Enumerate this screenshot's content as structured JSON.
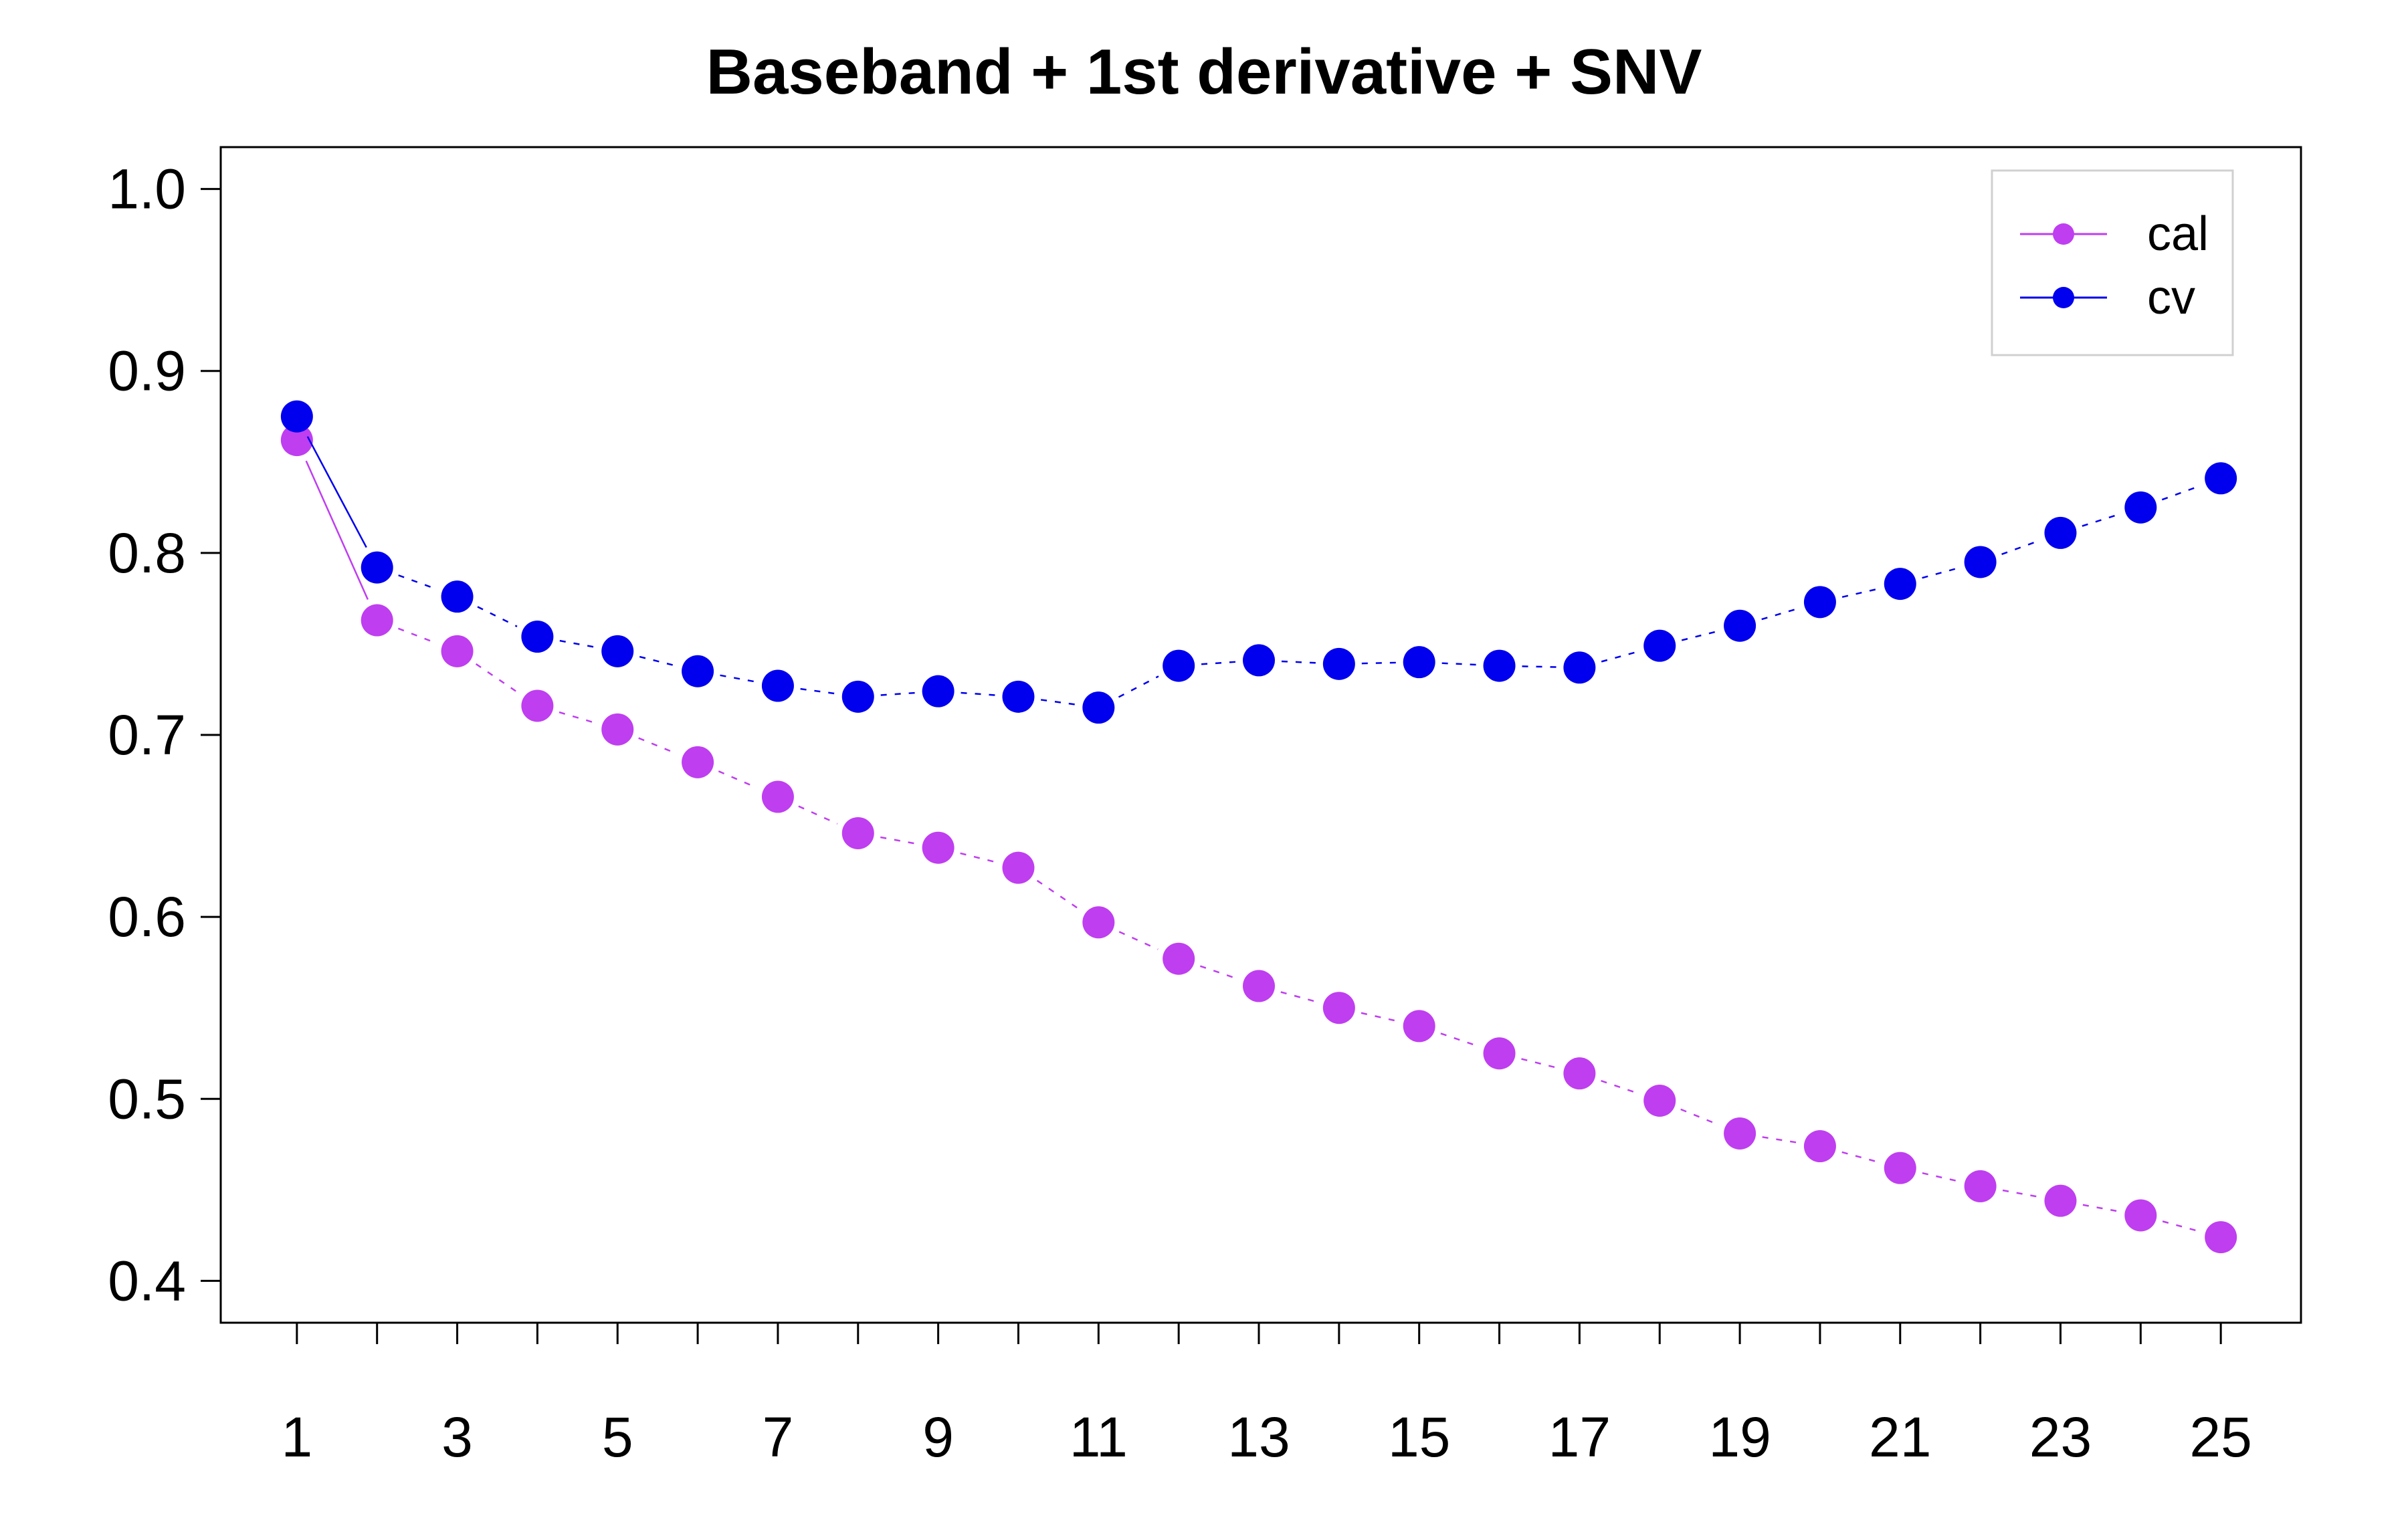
{
  "chart_data": {
    "type": "line",
    "title": "Baseband + 1st derivative + SNV",
    "xlabel": "",
    "ylabel": "",
    "x": [
      1,
      2,
      3,
      4,
      5,
      6,
      7,
      8,
      9,
      10,
      11,
      12,
      13,
      14,
      15,
      16,
      17,
      18,
      19,
      20,
      21,
      22,
      23,
      24,
      25
    ],
    "x_tick_labels": [
      "1",
      "3",
      "5",
      "7",
      "9",
      "11",
      "13",
      "15",
      "17",
      "19",
      "21",
      "23",
      "25"
    ],
    "y_tick_labels": [
      "0.4",
      "0.5",
      "0.6",
      "0.7",
      "0.8",
      "0.9",
      "1.0"
    ],
    "xlim": [
      0.05,
      26.0
    ],
    "ylim": [
      0.377,
      1.023
    ],
    "grid": false,
    "legend_position": "top-right",
    "series": [
      {
        "name": "cal",
        "color": "#bf3ef0",
        "values": [
          0.862,
          0.763,
          0.746,
          0.716,
          0.703,
          0.685,
          0.666,
          0.646,
          0.638,
          0.627,
          0.597,
          0.577,
          0.562,
          0.55,
          0.54,
          0.525,
          0.514,
          0.499,
          0.481,
          0.474,
          0.462,
          0.452,
          0.444,
          0.436,
          0.424
        ]
      },
      {
        "name": "cv",
        "color": "#0000ee",
        "values": [
          0.875,
          0.792,
          0.776,
          0.754,
          0.746,
          0.735,
          0.727,
          0.721,
          0.724,
          0.721,
          0.715,
          0.738,
          0.741,
          0.739,
          0.74,
          0.738,
          0.737,
          0.749,
          0.76,
          0.773,
          0.783,
          0.795,
          0.811,
          0.825,
          0.841
        ]
      }
    ]
  }
}
